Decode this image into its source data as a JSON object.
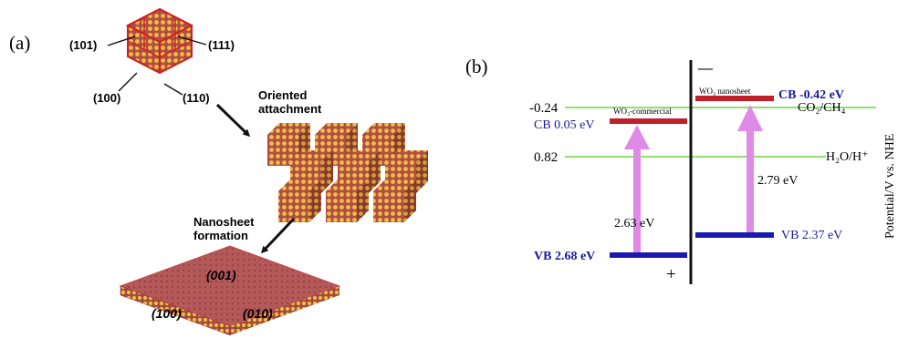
{
  "panel_a": {
    "label": "(a)",
    "crystal_facets": [
      "(101)",
      "(111)",
      "(100)",
      "(110)"
    ],
    "step1": "Oriented attachment",
    "step1_line1": "Oriented",
    "step1_line2": "attachment",
    "step2_line1": "Nanosheet",
    "step2_line2": "formation",
    "sheet_facets": [
      "(001)",
      "(100)",
      "(010)"
    ],
    "colors": {
      "crystal": "#b54a4a",
      "atom": "#e8c43a",
      "edge": "#d02020"
    }
  },
  "panel_b": {
    "label": "(b)",
    "minus": "—",
    "plus": "+",
    "ref_levels": [
      {
        "value": "-0.24",
        "label": "CO₂/CH₄"
      },
      {
        "value": "0.82",
        "label": "H₂O/H⁺"
      }
    ],
    "commercial": {
      "name": "WO₃-commercial",
      "cb": "CB 0.05 eV",
      "vb": "VB 2.68 eV",
      "gap": "2.63 eV"
    },
    "nanosheet": {
      "name": "WO₃ nanosheet",
      "cb": "CB -0.42 eV",
      "vb": "VB 2.37 eV",
      "gap": "2.79 eV"
    },
    "axis_label": "Potential/V vs. NHE",
    "colors": {
      "ref_line": "#90e070",
      "cb": "#c0202a",
      "vb": "#1a1ab0",
      "arrow": "#e08ae8",
      "text_blue": "#1a1a9a"
    }
  }
}
